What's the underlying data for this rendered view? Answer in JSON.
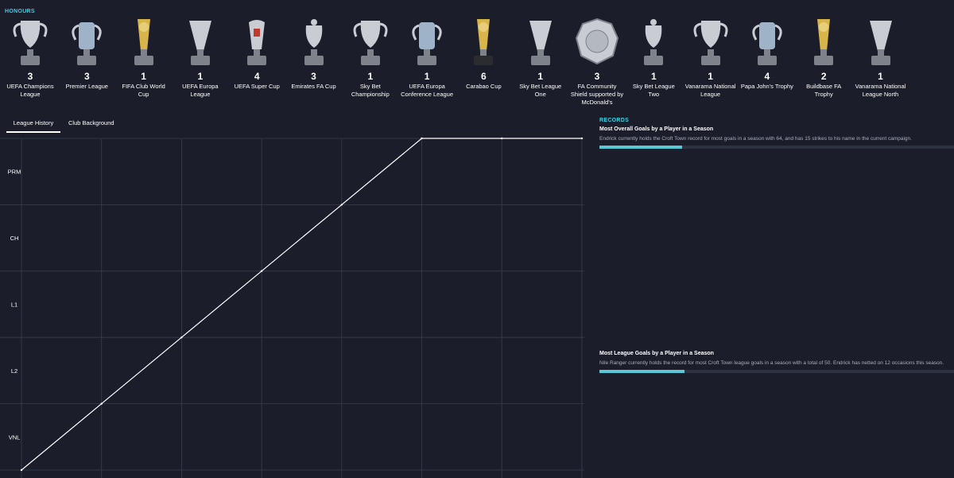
{
  "honours": {
    "title": "HONOURS",
    "trophies": [
      {
        "count": "3",
        "name": "UEFA Champions League",
        "icon": "champions-league-trophy-icon"
      },
      {
        "count": "3",
        "name": "Premier League",
        "icon": "premier-league-trophy-icon"
      },
      {
        "count": "1",
        "name": "FIFA Club World Cup",
        "icon": "club-world-cup-trophy-icon"
      },
      {
        "count": "1",
        "name": "UEFA Europa League",
        "icon": "europa-league-trophy-icon"
      },
      {
        "count": "4",
        "name": "UEFA Super Cup",
        "icon": "super-cup-trophy-icon"
      },
      {
        "count": "3",
        "name": "Emirates FA Cup",
        "icon": "fa-cup-trophy-icon"
      },
      {
        "count": "1",
        "name": "Sky Bet Championship",
        "icon": "championship-trophy-icon"
      },
      {
        "count": "1",
        "name": "UEFA Europa Conference League",
        "icon": "conference-league-trophy-icon"
      },
      {
        "count": "6",
        "name": "Carabao Cup",
        "icon": "carabao-cup-trophy-icon"
      },
      {
        "count": "1",
        "name": "Sky Bet League One",
        "icon": "league-one-trophy-icon"
      },
      {
        "count": "3",
        "name": "FA Community Shield supported by McDonald's",
        "icon": "community-shield-icon"
      },
      {
        "count": "1",
        "name": "Sky Bet League Two",
        "icon": "league-two-trophy-icon"
      },
      {
        "count": "1",
        "name": "Vanarama National League",
        "icon": "national-league-trophy-icon"
      },
      {
        "count": "4",
        "name": "Papa John's Trophy",
        "icon": "papa-johns-trophy-icon"
      },
      {
        "count": "2",
        "name": "Buildbase FA Trophy",
        "icon": "fa-trophy-icon"
      },
      {
        "count": "1",
        "name": "Vanarama National League North",
        "icon": "national-league-north-trophy-icon"
      }
    ]
  },
  "tabs": [
    {
      "label": "League History",
      "active": true
    },
    {
      "label": "Club Background",
      "active": false
    }
  ],
  "chart_data": {
    "type": "line",
    "categories": [
      "VNL",
      "L2",
      "L1",
      "CH",
      "PRM",
      ""
    ],
    "x": [
      0,
      1,
      2,
      3,
      4,
      5,
      6,
      7
    ],
    "values": [
      0,
      1,
      2,
      3,
      4,
      5,
      5,
      5
    ],
    "ylim": [
      0,
      5
    ],
    "xlim": [
      0,
      7
    ],
    "grid": true
  },
  "records": {
    "title": "RECORDS",
    "items": [
      {
        "title": "Most Overall Goals by a Player in a Season",
        "description": "Endrick currently holds the Croft Town record for most goals in a season with 64, and has 15 strikes to his name in the current campaign.",
        "progress": 0.234
      },
      {
        "title": "Most League Goals by a Player in a Season",
        "description": "Nile Ranger currently holds the record for most Croft Town league goals in a season with a total of 50. Endrick has netted on 12 occasions this season.",
        "progress": 0.24
      }
    ]
  },
  "colors": {
    "background": "#1b1d2b",
    "accent": "#2fd3e6",
    "progress": "#59c7d6",
    "grid": "#3a3e4d",
    "line": "#ffffff"
  }
}
